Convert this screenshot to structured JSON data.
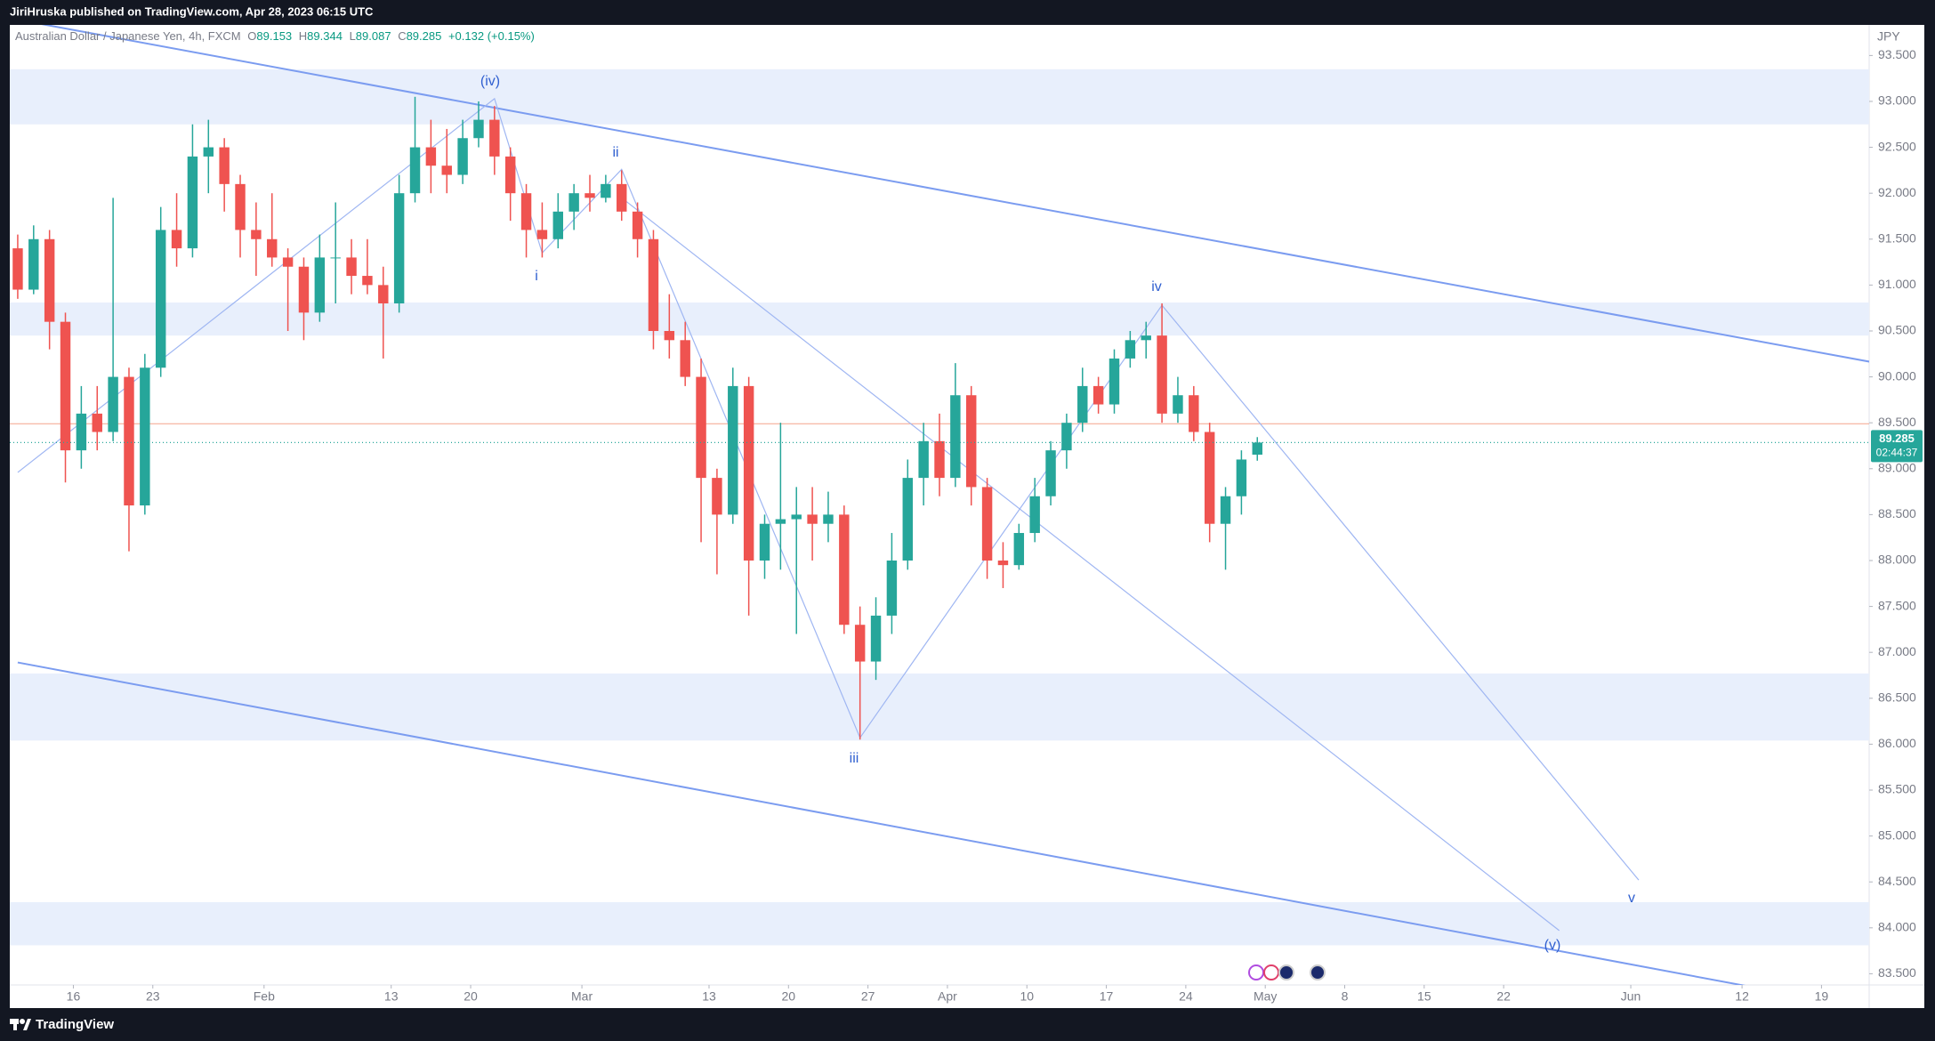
{
  "header": {
    "title": "JiriHruska published on TradingView.com, Apr 28, 2023 06:15 UTC"
  },
  "footer": {
    "brand": "TradingView"
  },
  "chart_data": {
    "type": "candlestick",
    "symbol": "Australian Dollar / Japanese Yen, 4h, FXCM",
    "ohlc_header": {
      "open_label": "O",
      "open": 89.153,
      "high_label": "H",
      "high": 89.344,
      "low_label": "L",
      "low": 89.087,
      "close_label": "C",
      "close": 89.285,
      "change": "+0.132 (+0.15%)"
    },
    "y_unit": "JPY",
    "x": [
      "2023-01-10",
      "2023-01-11",
      "2023-01-12",
      "2023-01-13",
      "2023-01-16",
      "2023-01-17",
      "2023-01-18",
      "2023-01-19",
      "2023-01-20",
      "2023-01-23",
      "2023-01-24",
      "2023-01-25",
      "2023-01-26",
      "2023-01-27",
      "2023-01-30",
      "2023-01-31",
      "2023-02-01",
      "2023-02-02",
      "2023-02-03",
      "2023-02-06",
      "2023-02-07",
      "2023-02-08",
      "2023-02-09",
      "2023-02-10",
      "2023-02-13",
      "2023-02-14",
      "2023-02-15",
      "2023-02-16",
      "2023-02-17",
      "2023-02-20",
      "2023-02-21",
      "2023-02-22",
      "2023-02-23",
      "2023-02-24",
      "2023-02-27",
      "2023-02-28",
      "2023-03-01",
      "2023-03-02",
      "2023-03-03",
      "2023-03-06",
      "2023-03-07",
      "2023-03-08",
      "2023-03-09",
      "2023-03-10",
      "2023-03-13",
      "2023-03-14",
      "2023-03-15",
      "2023-03-16",
      "2023-03-17",
      "2023-03-20",
      "2023-03-21",
      "2023-03-22",
      "2023-03-23",
      "2023-03-24",
      "2023-03-27",
      "2023-03-28",
      "2023-03-29",
      "2023-03-30",
      "2023-03-31",
      "2023-04-03",
      "2023-04-04",
      "2023-04-05",
      "2023-04-06",
      "2023-04-07",
      "2023-04-10",
      "2023-04-11",
      "2023-04-12",
      "2023-04-13",
      "2023-04-14",
      "2023-04-17",
      "2023-04-18",
      "2023-04-19",
      "2023-04-20",
      "2023-04-21",
      "2023-04-24",
      "2023-04-25",
      "2023-04-26",
      "2023-04-27",
      "2023-04-28"
    ],
    "open": [
      91.4,
      90.95,
      91.5,
      90.6,
      89.2,
      89.6,
      89.4,
      90.0,
      88.6,
      90.1,
      91.6,
      91.4,
      92.4,
      92.5,
      92.1,
      91.6,
      91.5,
      91.3,
      91.2,
      90.7,
      91.3,
      91.3,
      91.1,
      91.0,
      90.8,
      92.0,
      92.5,
      92.3,
      92.2,
      92.6,
      92.8,
      92.4,
      92.0,
      91.6,
      91.5,
      91.8,
      92.0,
      91.95,
      92.1,
      91.8,
      91.5,
      90.5,
      90.4,
      90.0,
      88.9,
      88.5,
      89.9,
      88.0,
      88.4,
      88.45,
      88.5,
      88.4,
      88.5,
      87.3,
      86.9,
      87.4,
      88.0,
      88.9,
      89.3,
      88.9,
      89.8,
      88.8,
      88.0,
      87.95,
      88.3,
      88.7,
      89.2,
      89.5,
      89.9,
      89.7,
      90.2,
      90.4,
      90.45,
      89.6,
      89.8,
      89.4,
      88.4,
      88.7,
      89.153
    ],
    "high": [
      91.55,
      91.65,
      91.6,
      90.7,
      89.9,
      89.9,
      91.95,
      90.1,
      90.25,
      91.85,
      92.0,
      92.75,
      92.8,
      92.6,
      92.2,
      91.9,
      92.0,
      91.4,
      91.3,
      91.55,
      91.9,
      91.5,
      91.5,
      91.2,
      92.2,
      93.05,
      92.8,
      92.7,
      92.8,
      93.0,
      92.95,
      92.5,
      92.1,
      91.9,
      92.0,
      92.1,
      92.2,
      92.2,
      92.25,
      91.9,
      91.6,
      90.9,
      90.6,
      90.2,
      89.0,
      90.1,
      90.0,
      88.5,
      89.5,
      88.8,
      88.8,
      88.75,
      88.6,
      87.5,
      87.6,
      88.3,
      89.1,
      89.5,
      89.6,
      90.15,
      89.9,
      88.9,
      88.2,
      88.4,
      88.9,
      89.3,
      89.6,
      90.1,
      90.0,
      90.3,
      90.5,
      90.6,
      90.8,
      90.0,
      89.9,
      89.5,
      88.8,
      89.2,
      89.344
    ],
    "low": [
      90.85,
      90.9,
      90.3,
      88.85,
      89.0,
      89.2,
      89.3,
      88.1,
      88.5,
      90.0,
      91.2,
      91.3,
      92.0,
      91.8,
      91.3,
      91.1,
      91.2,
      90.5,
      90.4,
      90.6,
      90.8,
      90.9,
      90.9,
      90.2,
      90.7,
      91.9,
      92.0,
      92.0,
      92.1,
      92.5,
      92.2,
      91.7,
      91.3,
      91.3,
      91.4,
      91.6,
      91.8,
      91.9,
      91.7,
      91.3,
      90.3,
      90.2,
      89.9,
      88.2,
      87.85,
      88.4,
      87.4,
      87.8,
      87.9,
      87.2,
      88.0,
      88.2,
      87.2,
      86.05,
      86.7,
      87.2,
      87.9,
      88.6,
      88.7,
      88.8,
      88.6,
      87.8,
      87.7,
      87.9,
      88.2,
      88.6,
      89.0,
      89.4,
      89.6,
      89.6,
      90.1,
      90.2,
      89.5,
      89.5,
      89.3,
      88.2,
      87.9,
      88.5,
      89.087
    ],
    "close": [
      90.95,
      91.5,
      90.6,
      89.2,
      89.6,
      89.4,
      90.0,
      88.6,
      90.1,
      91.6,
      91.4,
      92.4,
      92.5,
      92.1,
      91.6,
      91.5,
      91.3,
      91.2,
      90.7,
      91.3,
      91.3,
      91.1,
      91.0,
      90.8,
      92.0,
      92.5,
      92.3,
      92.2,
      92.6,
      92.8,
      92.4,
      92.0,
      91.6,
      91.5,
      91.8,
      92.0,
      91.95,
      92.1,
      91.8,
      91.5,
      90.5,
      90.4,
      90.0,
      88.9,
      88.5,
      89.9,
      88.0,
      88.4,
      88.45,
      88.5,
      88.4,
      88.5,
      87.3,
      86.9,
      87.4,
      88.0,
      88.9,
      89.3,
      88.9,
      89.8,
      88.8,
      88.0,
      87.95,
      88.3,
      88.7,
      89.2,
      89.5,
      89.9,
      89.7,
      90.2,
      90.4,
      90.45,
      89.6,
      89.8,
      89.4,
      88.4,
      88.7,
      89.1,
      89.285
    ],
    "up_color": "#26a69a",
    "down_color": "#ef5350",
    "xlim": [
      "2023-01-10",
      "2023-06-22"
    ],
    "xticks": [
      {
        "value": "2023-01-16",
        "label": "16"
      },
      {
        "value": "2023-01-23",
        "label": "23"
      },
      {
        "value": "2023-02-01",
        "label": "Feb"
      },
      {
        "value": "2023-02-13",
        "label": "13"
      },
      {
        "value": "2023-02-20",
        "label": "20"
      },
      {
        "value": "2023-03-01",
        "label": "Mar"
      },
      {
        "value": "2023-03-13",
        "label": "13"
      },
      {
        "value": "2023-03-20",
        "label": "20"
      },
      {
        "value": "2023-03-27",
        "label": "27"
      },
      {
        "value": "2023-04-03",
        "label": "Apr"
      },
      {
        "value": "2023-04-10",
        "label": "10"
      },
      {
        "value": "2023-04-17",
        "label": "17"
      },
      {
        "value": "2023-04-24",
        "label": "24"
      },
      {
        "value": "2023-05-01",
        "label": "May"
      },
      {
        "value": "2023-05-08",
        "label": "8"
      },
      {
        "value": "2023-05-15",
        "label": "15"
      },
      {
        "value": "2023-05-22",
        "label": "22"
      },
      {
        "value": "2023-06-01",
        "label": "Jun"
      },
      {
        "value": "2023-06-12",
        "label": "12"
      },
      {
        "value": "2023-06-19",
        "label": "19"
      }
    ],
    "ylim": [
      83.378,
      93.833
    ],
    "yticks": [
      {
        "value": 83.5,
        "label": "83.500"
      },
      {
        "value": 84,
        "label": "84.000"
      },
      {
        "value": 84.5,
        "label": "84.500"
      },
      {
        "value": 85,
        "label": "85.000"
      },
      {
        "value": 85.5,
        "label": "85.500"
      },
      {
        "value": 86,
        "label": "86.000"
      },
      {
        "value": 86.5,
        "label": "86.500"
      },
      {
        "value": 87,
        "label": "87.000"
      },
      {
        "value": 87.5,
        "label": "87.500"
      },
      {
        "value": 88,
        "label": "88.000"
      },
      {
        "value": 88.5,
        "label": "88.500"
      },
      {
        "value": 89,
        "label": "89.000"
      },
      {
        "value": 89.5,
        "label": "89.500"
      },
      {
        "value": 90,
        "label": "90.000"
      },
      {
        "value": 90.5,
        "label": "90.500"
      },
      {
        "value": 91,
        "label": "91.000"
      },
      {
        "value": 91.5,
        "label": "91.500"
      },
      {
        "value": 92,
        "label": "92.000"
      },
      {
        "value": 92.5,
        "label": "92.500"
      },
      {
        "value": 93,
        "label": "93.000"
      },
      {
        "value": 93.5,
        "label": "93.500"
      }
    ],
    "zones": [
      {
        "from": 92.75,
        "to": 93.35
      },
      {
        "from": 90.45,
        "to": 90.81
      },
      {
        "from": 86.04,
        "to": 86.77
      },
      {
        "from": 83.81,
        "to": 84.28
      }
    ],
    "zone_color": "#e8effc",
    "lines": [
      {
        "color": "#7b9cf0",
        "x": [
          "2023-01-10",
          "2023-06-22"
        ],
        "y": [
          93.89,
          90.15
        ]
      },
      {
        "color": "#7b9cf0",
        "x": [
          "2023-01-10",
          "2023-06-22"
        ],
        "y": [
          86.89,
          83.1
        ]
      },
      {
        "color": "#9fb6f2",
        "x": [
          "2023-01-10",
          "2023-02-21",
          "2023-02-24",
          "2023-03-03",
          "2023-03-24",
          "2023-04-20",
          "2023-06-01"
        ],
        "y": [
          88.96,
          93.03,
          91.35,
          92.26,
          86.07,
          90.78,
          84.52
        ]
      },
      {
        "color": "#9fb6f2",
        "x": [
          "2023-03-03",
          "2023-05-25"
        ],
        "y": [
          91.95,
          83.97
        ]
      }
    ],
    "wave_labels": [
      "(iv)",
      "i",
      "ii",
      "iii",
      "iv",
      "v",
      "(v)"
    ],
    "wave_label_color": "#2f5fd0",
    "price_line": {
      "value": 89.49,
      "color": "#f5a48c"
    },
    "last_price": 89.285,
    "countdown": "02:44:37"
  }
}
